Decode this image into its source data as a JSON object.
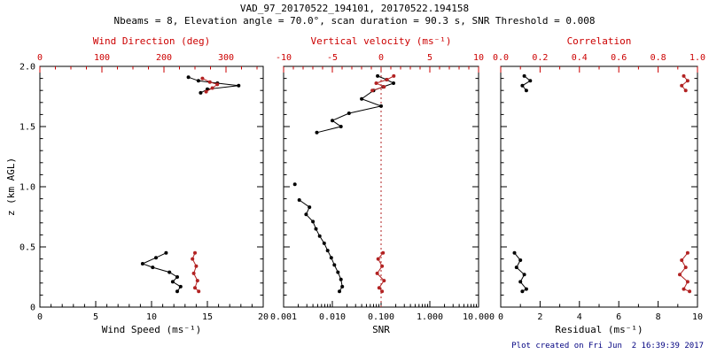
{
  "header": {
    "title": "VAD_97_20170522_194101, 20170522.194158",
    "subtitle": "Nbeams = 8, Elevation angle = 70.0°, scan duration = 90.3 s, SNR Threshold = 0.008"
  },
  "footer": {
    "created": "Plot created on Fri Jun  2 16:39:39 2017"
  },
  "colors": {
    "axis_red": "#cc0000",
    "series_red": "#b22222",
    "axis_black": "#000000",
    "footer_blue": "#000080",
    "background": "#ffffff"
  },
  "chart_data": [
    {
      "type": "line",
      "name": "wind-panel",
      "x_bottom": {
        "label": "Wind Speed (ms⁻¹)",
        "range": [
          0,
          20
        ],
        "ticks": [
          0,
          5,
          10,
          15,
          20
        ],
        "tick_labels": [
          "0",
          "5",
          "10",
          "15",
          "20"
        ],
        "minor_step": 1
      },
      "x_top": {
        "label": "Wind Direction (deg)",
        "range": [
          0,
          360
        ],
        "ticks": [
          0,
          100,
          200,
          300
        ],
        "tick_labels": [
          "0",
          "100",
          "200",
          "300"
        ],
        "minor_step": 25
      },
      "y": {
        "label": "z (km AGL)",
        "range": [
          0,
          2
        ],
        "ticks": [
          0,
          0.5,
          1,
          1.5,
          2
        ],
        "tick_labels": [
          "0",
          "0.5",
          "1.0",
          "1.5",
          "2.0"
        ],
        "minor_step": 0.1
      },
      "grid": false,
      "series": [
        {
          "name": "wind-speed-upper",
          "axis": "bottom",
          "color": "black",
          "z": [
            1.91,
            1.88,
            1.86,
            1.84,
            1.81,
            1.78
          ],
          "x": [
            13.3,
            14.2,
            15.9,
            17.8,
            15.0,
            14.4
          ]
        },
        {
          "name": "wind-speed-lower",
          "axis": "bottom",
          "color": "black",
          "z": [
            0.45,
            0.41,
            0.36,
            0.33,
            0.29,
            0.25,
            0.21,
            0.17,
            0.13
          ],
          "x": [
            11.3,
            10.4,
            9.2,
            10.1,
            11.6,
            12.3,
            11.9,
            12.6,
            12.3
          ]
        },
        {
          "name": "wind-direction-upper",
          "axis": "top",
          "color": "red",
          "z": [
            1.9,
            1.87,
            1.85,
            1.82,
            1.79
          ],
          "x": [
            262,
            274,
            286,
            278,
            268
          ]
        },
        {
          "name": "wind-direction-lower",
          "axis": "top",
          "color": "red",
          "z": [
            0.45,
            0.4,
            0.34,
            0.28,
            0.22,
            0.16,
            0.13
          ],
          "x": [
            250,
            246,
            252,
            248,
            254,
            250,
            256
          ]
        }
      ]
    },
    {
      "type": "line",
      "name": "snr-panel",
      "x_bottom": {
        "label": "SNR",
        "scale": "log",
        "range": [
          0.001,
          10
        ],
        "ticks": [
          0.001,
          0.01,
          0.1,
          1,
          10
        ],
        "tick_labels": [
          "0.001",
          "0.010",
          "0.100",
          "1.000",
          "10.000"
        ]
      },
      "x_top": {
        "label": "Vertical velocity (ms⁻¹)",
        "range": [
          -10,
          10
        ],
        "ticks": [
          -10,
          -5,
          0,
          5,
          10
        ],
        "tick_labels": [
          "-10",
          "-5",
          "0",
          "5",
          "10"
        ],
        "minor_step": 1
      },
      "y": {
        "label": "",
        "range": [
          0,
          2
        ],
        "ticks": [
          0,
          0.5,
          1,
          1.5,
          2
        ],
        "tick_labels": [
          "0",
          "0.5",
          "1.0",
          "1.5",
          "2.0"
        ],
        "minor_step": 0.1
      },
      "grid": false,
      "refline": {
        "axis": "top",
        "value": 0,
        "style": "dotted",
        "color": "red"
      },
      "series": [
        {
          "name": "snr-upper",
          "axis": "bottom",
          "color": "black",
          "z": [
            1.92,
            1.89,
            1.86,
            1.83,
            1.8,
            1.73,
            1.67,
            1.61,
            1.55,
            1.5,
            1.45
          ],
          "x": [
            0.085,
            0.13,
            0.18,
            0.11,
            0.07,
            0.04,
            0.1,
            0.022,
            0.01,
            0.015,
            0.0048
          ]
        },
        {
          "name": "snr-isolated",
          "axis": "bottom",
          "color": "black",
          "z": [
            1.02
          ],
          "x": [
            0.0017
          ]
        },
        {
          "name": "snr-lower",
          "axis": "bottom",
          "color": "black",
          "z": [
            0.89,
            0.83,
            0.77,
            0.71,
            0.65,
            0.59,
            0.53,
            0.47,
            0.41,
            0.35,
            0.29,
            0.23,
            0.17,
            0.13
          ],
          "x": [
            0.0021,
            0.0034,
            0.0029,
            0.004,
            0.0046,
            0.0055,
            0.0068,
            0.008,
            0.0095,
            0.011,
            0.013,
            0.015,
            0.016,
            0.014
          ]
        },
        {
          "name": "vertical-velocity-upper",
          "axis": "top",
          "color": "red",
          "z": [
            1.92,
            1.89,
            1.86,
            1.83,
            1.8
          ],
          "x": [
            1.3,
            0.6,
            -0.5,
            0.3,
            -0.9
          ]
        },
        {
          "name": "vertical-velocity-lower",
          "axis": "top",
          "color": "red",
          "z": [
            0.45,
            0.4,
            0.34,
            0.28,
            0.22,
            0.16,
            0.13
          ],
          "x": [
            0.2,
            -0.3,
            0.1,
            -0.4,
            0.3,
            -0.2,
            0.1
          ]
        }
      ]
    },
    {
      "type": "line",
      "name": "residual-panel",
      "x_bottom": {
        "label": "Residual (ms⁻¹)",
        "range": [
          0,
          10
        ],
        "ticks": [
          0,
          2,
          4,
          6,
          8,
          10
        ],
        "tick_labels": [
          "0",
          "2",
          "4",
          "6",
          "8",
          "10"
        ],
        "minor_step": 1
      },
      "x_top": {
        "label": "Correlation",
        "range": [
          0,
          1
        ],
        "ticks": [
          0,
          0.2,
          0.4,
          0.6,
          0.8,
          1
        ],
        "tick_labels": [
          "0.0",
          "0.2",
          "0.4",
          "0.6",
          "0.8",
          "1.0"
        ],
        "minor_step": 0.1
      },
      "y": {
        "label": "",
        "range": [
          0,
          2
        ],
        "ticks": [
          0,
          0.5,
          1,
          1.5,
          2
        ],
        "tick_labels": [
          "0",
          "0.5",
          "1.0",
          "1.5",
          "2.0"
        ],
        "minor_step": 0.1
      },
      "grid": false,
      "series": [
        {
          "name": "residual-upper",
          "axis": "bottom",
          "color": "black",
          "z": [
            1.92,
            1.88,
            1.84,
            1.8
          ],
          "x": [
            1.2,
            1.5,
            1.1,
            1.3
          ]
        },
        {
          "name": "residual-lower",
          "axis": "bottom",
          "color": "black",
          "z": [
            0.45,
            0.39,
            0.33,
            0.27,
            0.21,
            0.15,
            0.13
          ],
          "x": [
            0.7,
            1.0,
            0.8,
            1.2,
            1.0,
            1.3,
            1.1
          ]
        },
        {
          "name": "correlation-upper",
          "axis": "top",
          "color": "red",
          "z": [
            1.92,
            1.88,
            1.84,
            1.8
          ],
          "x": [
            0.93,
            0.95,
            0.92,
            0.94
          ]
        },
        {
          "name": "correlation-lower",
          "axis": "top",
          "color": "red",
          "z": [
            0.45,
            0.39,
            0.33,
            0.27,
            0.21,
            0.15,
            0.13
          ],
          "x": [
            0.95,
            0.92,
            0.94,
            0.91,
            0.95,
            0.93,
            0.96
          ]
        }
      ]
    }
  ]
}
